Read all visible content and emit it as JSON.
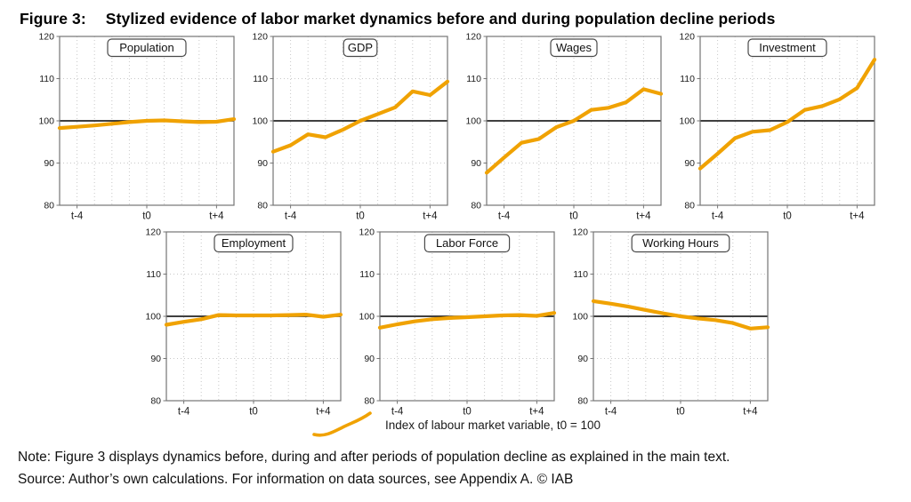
{
  "header": {
    "figure_label": "Figure 3:",
    "title": "Stylized evidence of labor market dynamics before and during population decline periods"
  },
  "colors": {
    "line": "#F0A202",
    "reference_line": "#000000",
    "grid": "#C8C8C8",
    "frame": "#757575",
    "text": "#1A1A1A"
  },
  "legend": {
    "label": "Index of labour market variable, t0 = 100"
  },
  "note": "Note: Figure 3 displays dynamics before, during and after periods of population decline as explained in the main text.",
  "source": "Source: Author’s own calculations. For information on data sources, see Appendix A. © IAB",
  "chart_data": {
    "type": "line",
    "x": [
      -5,
      -4,
      -3,
      -2,
      -1,
      0,
      1,
      2,
      3,
      4,
      5
    ],
    "xlim": [
      -5,
      5
    ],
    "ylim": [
      80,
      120
    ],
    "y_ticks": [
      80,
      90,
      100,
      110,
      120
    ],
    "x_tick_values": [
      -4,
      0,
      4
    ],
    "x_tick_labels": [
      "t-4",
      "t0",
      "t+4"
    ],
    "grid_y": [
      90,
      110
    ],
    "grid_x_every_period": true,
    "reference_line_y": 100,
    "legend": "Index of labour market variable, t0 = 100",
    "legend_position": "bottom-center",
    "rows": [
      [
        0,
        1,
        2,
        3
      ],
      [
        4,
        5,
        6
      ]
    ],
    "panels": [
      {
        "title": "Population",
        "values": [
          98.3,
          98.6,
          98.9,
          99.3,
          99.7,
          100.0,
          100.1,
          99.9,
          99.7,
          99.8,
          100.4
        ]
      },
      {
        "title": "GDP",
        "values": [
          92.7,
          94.2,
          96.8,
          96.1,
          97.9,
          100.0,
          101.6,
          103.2,
          107.0,
          106.1,
          109.3
        ]
      },
      {
        "title": "Wages",
        "values": [
          87.7,
          91.3,
          94.8,
          95.7,
          98.5,
          100.0,
          102.6,
          103.1,
          104.4,
          107.5,
          106.4
        ]
      },
      {
        "title": "Investment",
        "values": [
          88.7,
          92.2,
          95.9,
          97.4,
          97.8,
          99.7,
          102.6,
          103.5,
          105.1,
          107.8,
          114.5
        ]
      },
      {
        "title": "Employment",
        "values": [
          98.0,
          98.7,
          99.3,
          100.3,
          100.2,
          100.2,
          100.2,
          100.3,
          100.4,
          99.9,
          100.4
        ]
      },
      {
        "title": "Labor Force",
        "values": [
          97.3,
          98.1,
          98.8,
          99.3,
          99.6,
          99.8,
          100.0,
          100.2,
          100.3,
          100.1,
          100.8
        ]
      },
      {
        "title": "Working Hours",
        "values": [
          103.6,
          103.0,
          102.3,
          101.5,
          100.7,
          100.0,
          99.5,
          99.1,
          98.4,
          97.1,
          97.4
        ]
      }
    ]
  }
}
